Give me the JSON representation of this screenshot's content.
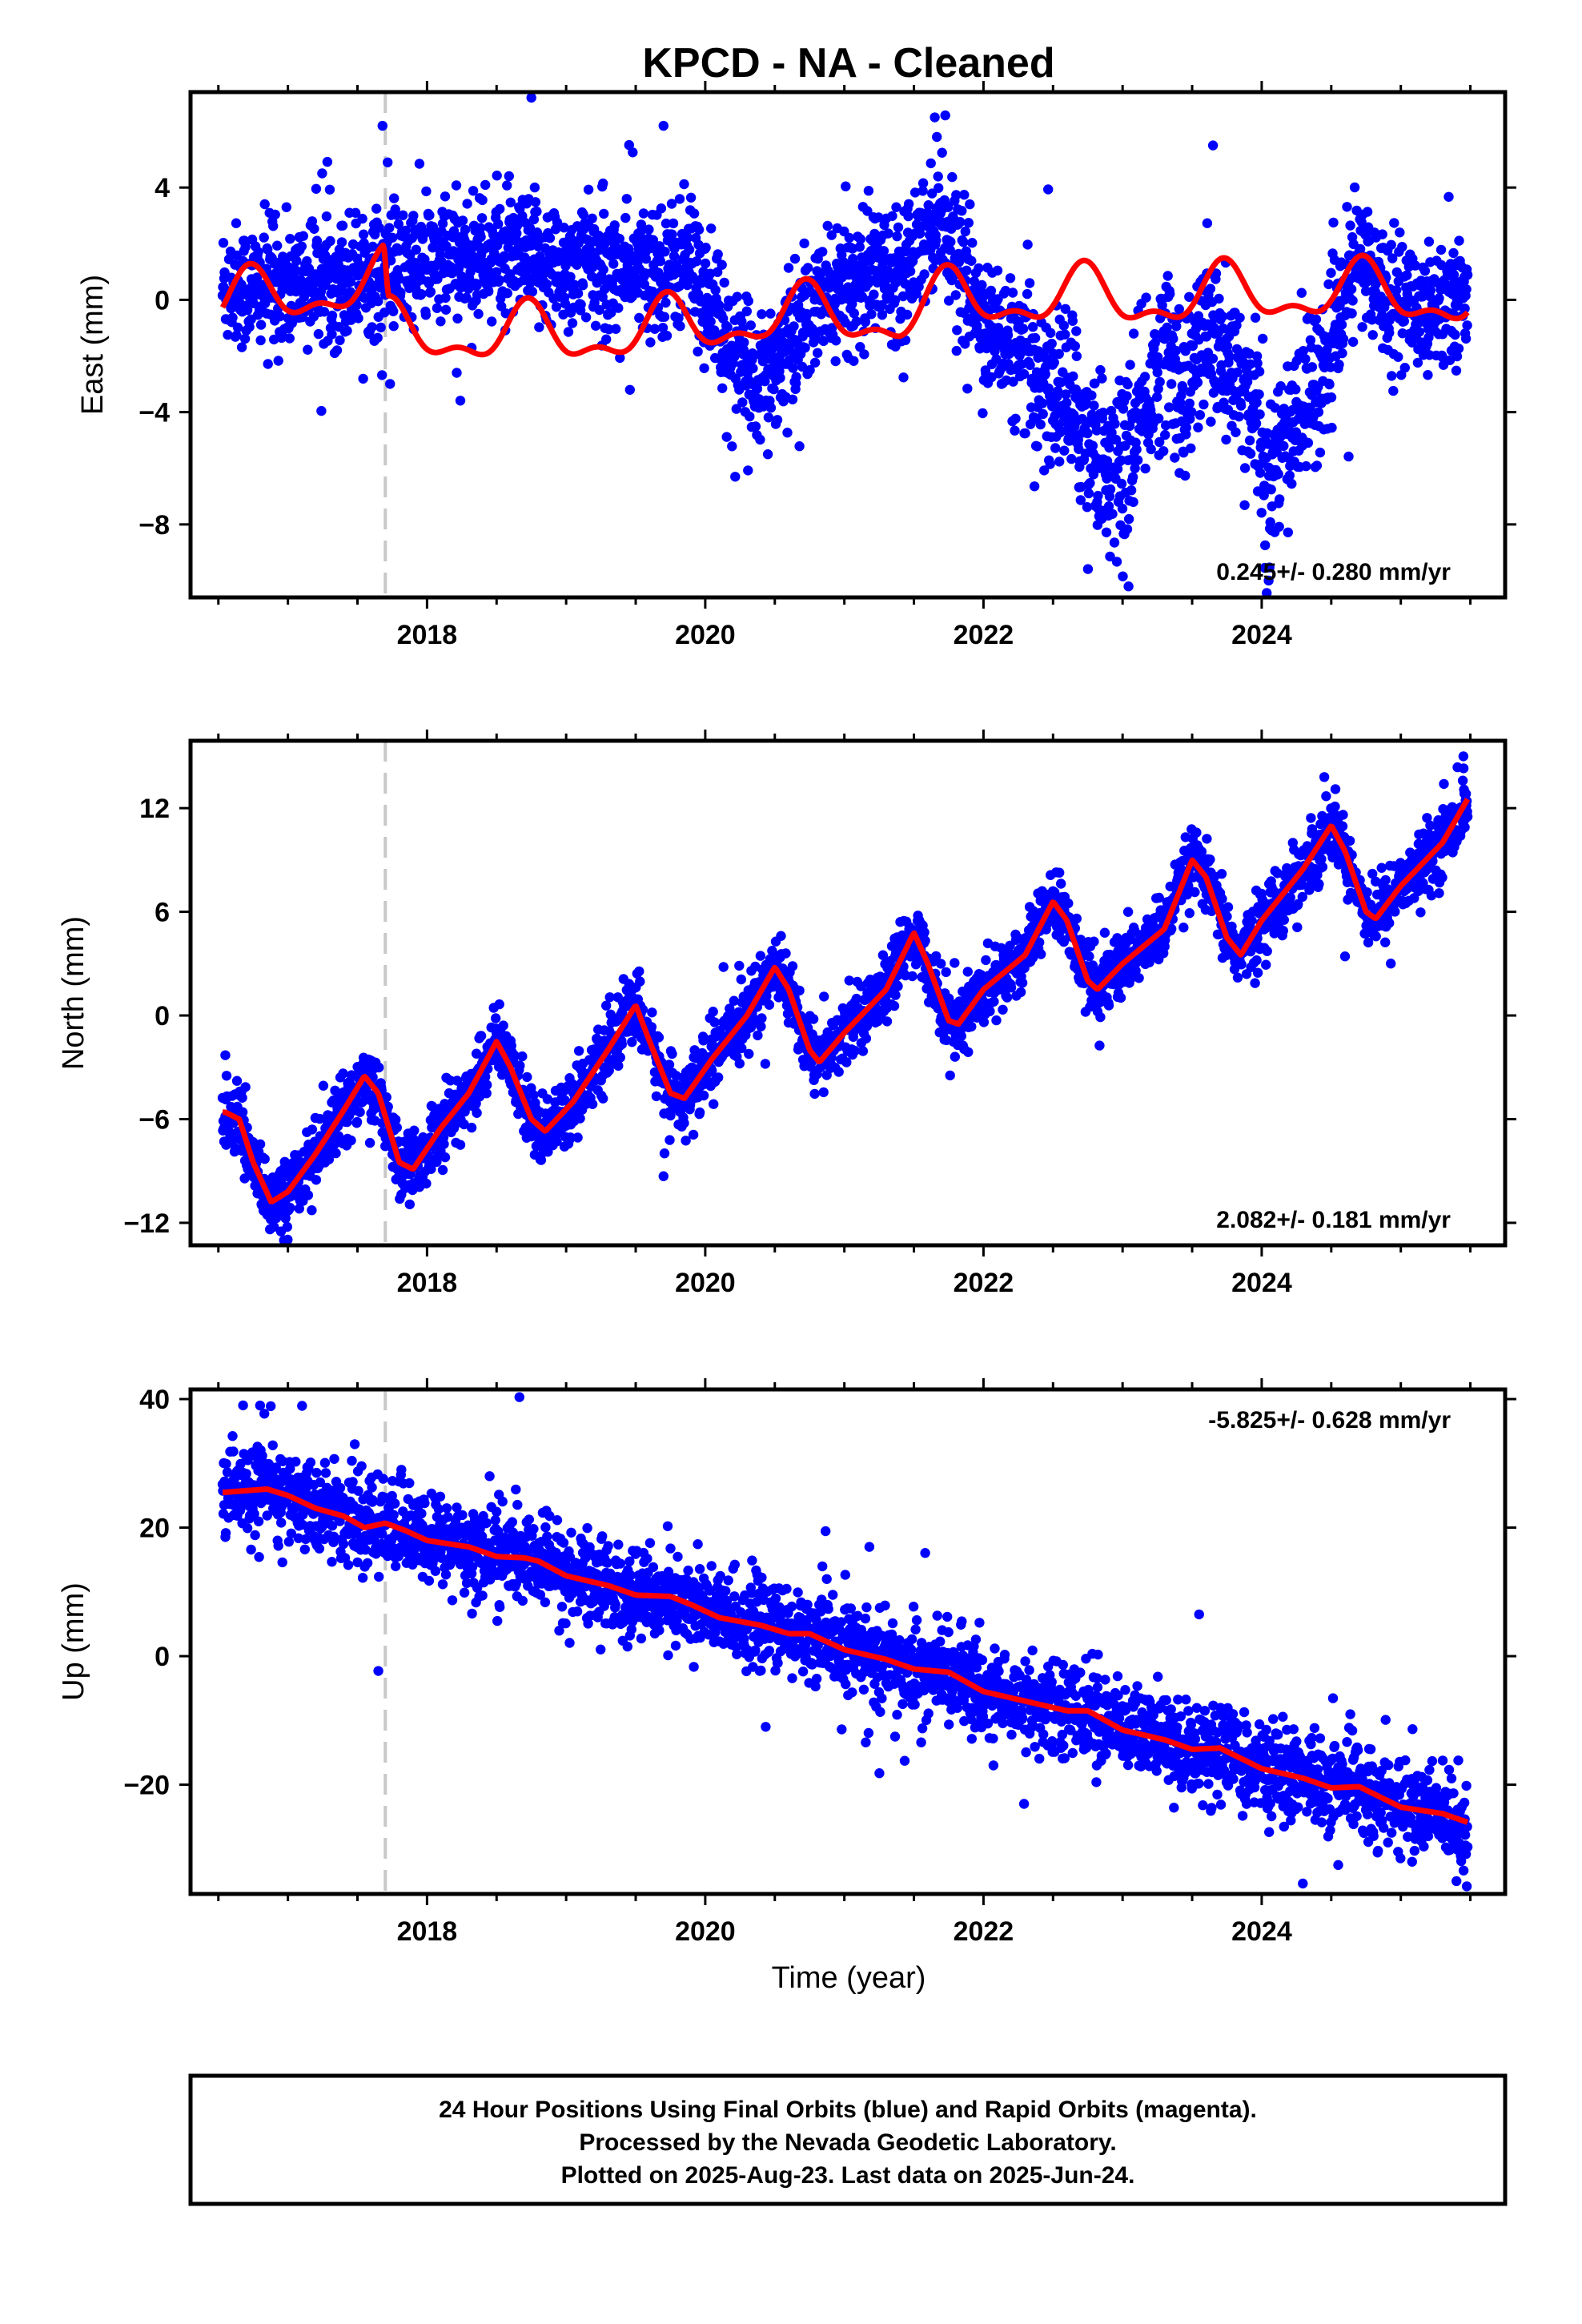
{
  "title": "KPCD  - NA - Cleaned",
  "colors": {
    "final_orbits": "#0000ff",
    "model": "#ff0000",
    "event_line": "#c8c8c8",
    "axes": "#000000"
  },
  "footer": {
    "line1": "24 Hour Positions Using Final Orbits (blue) and Rapid Orbits (magenta).",
    "line2": "Processed by the Nevada Geodetic Laboratory.",
    "line3": "Plotted on 2025-Aug-23. Last data on 2025-Jun-24."
  },
  "chart_data": [
    {
      "type": "scatter",
      "panel": "east",
      "ylabel": "East (mm)",
      "xlim": [
        2016.3,
        2025.75
      ],
      "ylim": [
        -10.6,
        7.4
      ],
      "yticks": [
        -8,
        -4,
        0,
        4
      ],
      "xticks": [
        2018,
        2020,
        2022,
        2024
      ],
      "x_unlabeled_ticks": [
        2016.5,
        2017,
        2017.5,
        2018.5,
        2019,
        2019.5,
        2020.5,
        2021,
        2021.5,
        2022.5,
        2023,
        2023.5,
        2024.5,
        2025,
        2025.5
      ],
      "event_line_x": 2017.7,
      "rate_text": "0.245+/- 0.280 mm/yr",
      "rate_position": "bottom-right",
      "series": [
        {
          "role": "observations",
          "color": "#0000ff",
          "trend": [
            [
              2016.55,
              0.5
            ],
            [
              2017.0,
              0.5
            ],
            [
              2017.5,
              0.9
            ],
            [
              2017.7,
              1.0
            ],
            [
              2018.0,
              1.3
            ],
            [
              2018.5,
              1.5
            ],
            [
              2019.0,
              1.2
            ],
            [
              2019.5,
              1.0
            ],
            [
              2019.9,
              1.3
            ],
            [
              2020.1,
              -1.0
            ],
            [
              2020.3,
              -2.8
            ],
            [
              2020.5,
              -2.2
            ],
            [
              2020.8,
              -0.3
            ],
            [
              2021.1,
              0.8
            ],
            [
              2021.4,
              1.2
            ],
            [
              2021.7,
              3.2
            ],
            [
              2021.85,
              1.0
            ],
            [
              2022.0,
              -0.8
            ],
            [
              2022.3,
              -2.2
            ],
            [
              2022.6,
              -3.5
            ],
            [
              2022.8,
              -5.2
            ],
            [
              2022.95,
              -6.5
            ],
            [
              2023.1,
              -4.8
            ],
            [
              2023.3,
              -1.5
            ],
            [
              2023.45,
              -3.5
            ],
            [
              2023.6,
              -1.0
            ],
            [
              2023.75,
              -2.5
            ],
            [
              2023.95,
              -3.5
            ],
            [
              2024.05,
              -7.0
            ],
            [
              2024.2,
              -4.5
            ],
            [
              2024.45,
              -2.5
            ],
            [
              2024.7,
              1.5
            ],
            [
              2025.0,
              -0.3
            ],
            [
              2025.5,
              0.0
            ]
          ],
          "scatter_sd": 1.1,
          "count": 3100,
          "notable_points": [
            [
              2017.68,
              6.2
            ],
            [
              2018.75,
              7.2
            ],
            [
              2019.7,
              6.2
            ],
            [
              2021.65,
              6.5
            ],
            [
              2023.65,
              5.5
            ],
            [
              2024.05,
              -10.0
            ],
            [
              2020.45,
              -5.5
            ],
            [
              2022.85,
              -7.8
            ]
          ]
        },
        {
          "role": "model",
          "color": "#ff0000",
          "base": [
            [
              2016.55,
              -0.2
            ],
            [
              2017.69,
              0.7
            ],
            [
              2017.72,
              -1.2
            ],
            [
              2019.0,
              -1.3
            ],
            [
              2019.9,
              -1.0
            ],
            [
              2020.4,
              -0.6
            ],
            [
              2021.4,
              -0.6
            ],
            [
              2021.8,
              0.0
            ],
            [
              2022.5,
              0.1
            ],
            [
              2023.0,
              0.0
            ],
            [
              2024.0,
              0.2
            ],
            [
              2024.5,
              0.3
            ],
            [
              2025.5,
              0.0
            ]
          ],
          "annual_amplitude": 0.9,
          "semiannual_amplitude": 0.45
        }
      ]
    },
    {
      "type": "scatter",
      "panel": "north",
      "ylabel": "North (mm)",
      "xlim": [
        2016.3,
        2025.75
      ],
      "ylim": [
        -13.3,
        15.9
      ],
      "yticks": [
        -12,
        -6,
        0,
        6,
        12
      ],
      "xticks": [
        2018,
        2020,
        2022,
        2024
      ],
      "x_unlabeled_ticks": [
        2016.5,
        2017,
        2017.5,
        2018.5,
        2019,
        2019.5,
        2020.5,
        2021,
        2021.5,
        2022.5,
        2023,
        2023.5,
        2024.5,
        2025,
        2025.5
      ],
      "event_line_x": 2017.7,
      "rate_text": "2.082+/- 0.181 mm/yr",
      "rate_position": "bottom-right",
      "series": [
        {
          "role": "model",
          "color": "#ff0000",
          "points": [
            [
              2016.55,
              -5.6
            ],
            [
              2016.65,
              -6.0
            ],
            [
              2016.75,
              -8.5
            ],
            [
              2016.88,
              -10.8
            ],
            [
              2017.0,
              -10.2
            ],
            [
              2017.2,
              -8.0
            ],
            [
              2017.4,
              -5.5
            ],
            [
              2017.55,
              -3.5
            ],
            [
              2017.65,
              -4.5
            ],
            [
              2017.8,
              -8.5
            ],
            [
              2017.9,
              -8.9
            ],
            [
              2018.1,
              -6.5
            ],
            [
              2018.3,
              -4.5
            ],
            [
              2018.5,
              -1.5
            ],
            [
              2018.6,
              -3.0
            ],
            [
              2018.75,
              -6.0
            ],
            [
              2018.85,
              -6.7
            ],
            [
              2019.05,
              -5.0
            ],
            [
              2019.3,
              -2.0
            ],
            [
              2019.5,
              0.6
            ],
            [
              2019.6,
              -1.5
            ],
            [
              2019.75,
              -4.5
            ],
            [
              2019.85,
              -4.8
            ],
            [
              2020.05,
              -2.5
            ],
            [
              2020.3,
              0.0
            ],
            [
              2020.5,
              2.8
            ],
            [
              2020.6,
              1.5
            ],
            [
              2020.75,
              -2.0
            ],
            [
              2020.82,
              -2.7
            ],
            [
              2021.0,
              -1.0
            ],
            [
              2021.3,
              1.5
            ],
            [
              2021.5,
              4.8
            ],
            [
              2021.6,
              3.0
            ],
            [
              2021.75,
              -0.3
            ],
            [
              2021.82,
              -0.5
            ],
            [
              2022.0,
              1.5
            ],
            [
              2022.3,
              3.5
            ],
            [
              2022.5,
              6.6
            ],
            [
              2022.6,
              5.5
            ],
            [
              2022.75,
              2.0
            ],
            [
              2022.82,
              1.5
            ],
            [
              2023.0,
              3.0
            ],
            [
              2023.3,
              5.0
            ],
            [
              2023.5,
              9.0
            ],
            [
              2023.6,
              8.0
            ],
            [
              2023.75,
              4.5
            ],
            [
              2023.85,
              3.5
            ],
            [
              2024.0,
              5.5
            ],
            [
              2024.3,
              8.5
            ],
            [
              2024.5,
              11.0
            ],
            [
              2024.6,
              9.5
            ],
            [
              2024.75,
              6.0
            ],
            [
              2024.82,
              5.6
            ],
            [
              2025.0,
              7.5
            ],
            [
              2025.3,
              10.0
            ],
            [
              2025.5,
              12.8
            ]
          ]
        },
        {
          "role": "observations",
          "color": "#0000ff",
          "scatter_sd": 0.9,
          "count": 3100,
          "notable_points": [
            [
              2016.55,
              -2.3
            ],
            [
              2016.95,
              -12.5
            ],
            [
              2019.7,
              -9.3
            ],
            [
              2025.45,
              15.0
            ],
            [
              2024.45,
              13.8
            ]
          ]
        }
      ]
    },
    {
      "type": "scatter",
      "panel": "up",
      "ylabel": "Up (mm)",
      "xlabel": "Time (year)",
      "xlim": [
        2016.3,
        2025.75
      ],
      "ylim": [
        -37.0,
        41.5
      ],
      "yticks": [
        -20,
        0,
        20,
        40
      ],
      "xticks": [
        2018,
        2020,
        2022,
        2024
      ],
      "x_unlabeled_ticks": [
        2016.5,
        2017,
        2017.5,
        2018.5,
        2019,
        2019.5,
        2020.5,
        2021,
        2021.5,
        2022.5,
        2023,
        2023.5,
        2024.5,
        2025,
        2025.5
      ],
      "event_line_x": 2017.7,
      "rate_text": "-5.825+/- 0.628 mm/yr",
      "rate_position": "top-right",
      "series": [
        {
          "role": "model",
          "color": "#ff0000",
          "points": [
            [
              2016.55,
              25.5
            ],
            [
              2016.85,
              26.0
            ],
            [
              2017.0,
              25.0
            ],
            [
              2017.2,
              23.0
            ],
            [
              2017.4,
              21.8
            ],
            [
              2017.55,
              20.0
            ],
            [
              2017.7,
              20.7
            ],
            [
              2017.85,
              19.5
            ],
            [
              2018.0,
              18.0
            ],
            [
              2018.3,
              17.0
            ],
            [
              2018.5,
              15.5
            ],
            [
              2018.7,
              15.3
            ],
            [
              2018.8,
              14.8
            ],
            [
              2019.0,
              12.5
            ],
            [
              2019.3,
              11.0
            ],
            [
              2019.5,
              9.5
            ],
            [
              2019.75,
              9.3
            ],
            [
              2019.9,
              8.0
            ],
            [
              2020.1,
              6.0
            ],
            [
              2020.4,
              4.8
            ],
            [
              2020.6,
              3.5
            ],
            [
              2020.75,
              3.5
            ],
            [
              2021.0,
              1.0
            ],
            [
              2021.3,
              -0.5
            ],
            [
              2021.5,
              -2.0
            ],
            [
              2021.75,
              -2.5
            ],
            [
              2022.0,
              -5.5
            ],
            [
              2022.3,
              -7.0
            ],
            [
              2022.6,
              -8.5
            ],
            [
              2022.75,
              -8.5
            ],
            [
              2023.0,
              -11.5
            ],
            [
              2023.3,
              -13.0
            ],
            [
              2023.5,
              -14.5
            ],
            [
              2023.7,
              -14.3
            ],
            [
              2024.0,
              -17.5
            ],
            [
              2024.3,
              -19.0
            ],
            [
              2024.5,
              -20.5
            ],
            [
              2024.7,
              -20.3
            ],
            [
              2025.0,
              -23.5
            ],
            [
              2025.3,
              -24.5
            ],
            [
              2025.5,
              -26.0
            ]
          ]
        },
        {
          "role": "observations",
          "color": "#0000ff",
          "scatter_sd": 3.3,
          "count": 3100,
          "notable_points": [
            [
              2016.8,
              39.0
            ],
            [
              2017.65,
              -2.3
            ],
            [
              2024.55,
              -32.5
            ],
            [
              2025.4,
              -35.0
            ],
            [
              2023.55,
              6.5
            ],
            [
              2018.45,
              28.0
            ]
          ]
        }
      ]
    }
  ]
}
